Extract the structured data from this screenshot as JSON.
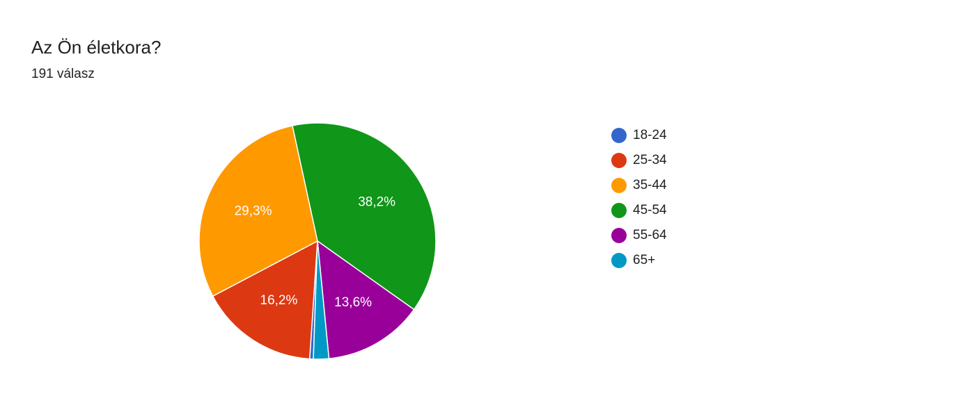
{
  "header": {
    "title": "Az Ön életkora?",
    "subtitle": "191 válasz"
  },
  "chart_data": {
    "type": "pie",
    "categories": [
      "18-24",
      "25-34",
      "35-44",
      "45-54",
      "55-64",
      "65+"
    ],
    "values": [
      0.5,
      16.2,
      29.3,
      38.2,
      13.6,
      2.1
    ],
    "labels": [
      "",
      "16,2%",
      "29,3%",
      "38,2%",
      "13,6%",
      ""
    ],
    "colors": [
      "#3366cc",
      "#dc3912",
      "#ff9900",
      "#109618",
      "#990099",
      "#0099c6"
    ],
    "start_angle_deg": 92,
    "direction": "clockwise",
    "legend_position": "right"
  }
}
